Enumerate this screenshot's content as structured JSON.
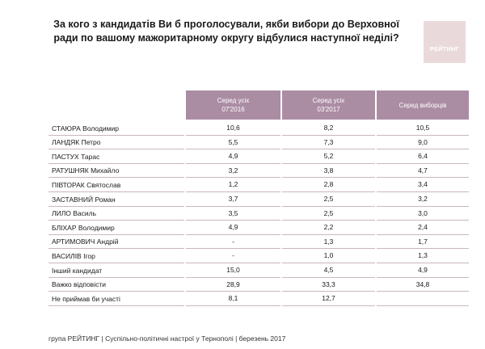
{
  "title": "За кого з кандидатів Ви б проголосували, якби вибори до Верховної ради по вашому мажоритарному округу відбулися наступної неділі?",
  "logo_text": "РЕЙТИНГ",
  "columns": [
    {
      "line1": "Серед усіх",
      "line2": "07'2016"
    },
    {
      "line1": "Серед усіх",
      "line2": "03'2017"
    },
    {
      "line1": "Серед виборців",
      "line2": ""
    }
  ],
  "rows": [
    {
      "name": "СТАЮРА Володимир",
      "v": [
        "10,6",
        "8,2",
        "10,5"
      ]
    },
    {
      "name": "ЛАНДЯК Петро",
      "v": [
        "5,5",
        "7,3",
        "9,0"
      ]
    },
    {
      "name": "ПАСТУХ Тарас",
      "v": [
        "4,9",
        "5,2",
        "6,4"
      ]
    },
    {
      "name": "РАТУШНЯК Михайло",
      "v": [
        "3,2",
        "3,8",
        "4,7"
      ]
    },
    {
      "name": "ПІВТОРАК Святослав",
      "v": [
        "1,2",
        "2,8",
        "3,4"
      ]
    },
    {
      "name": "ЗАСТАВНИЙ Роман",
      "v": [
        "3,7",
        "2,5",
        "3,2"
      ]
    },
    {
      "name": "ЛИЛО Василь",
      "v": [
        "3,5",
        "2,5",
        "3,0"
      ]
    },
    {
      "name": "БЛІХАР Володимир",
      "v": [
        "4,9",
        "2,2",
        "2,4"
      ]
    },
    {
      "name": "АРТИМОВИЧ Андрій",
      "v": [
        "-",
        "1,3",
        "1,7"
      ]
    },
    {
      "name": "ВАСИЛІВ Ігор",
      "v": [
        "-",
        "1,0",
        "1,3"
      ]
    },
    {
      "name": "Інший кандидат",
      "v": [
        "15,0",
        "4,5",
        "4,9"
      ]
    },
    {
      "name": "Важко відповісти",
      "v": [
        "28,9",
        "33,3",
        "34,8"
      ]
    },
    {
      "name": "Не приймав би участі",
      "v": [
        "8,1",
        "12,7",
        ""
      ]
    }
  ],
  "footer": "група РЕЙТИНГ  |  Суспільно-політичні настрої у Тернополі   |  березень 2017"
}
